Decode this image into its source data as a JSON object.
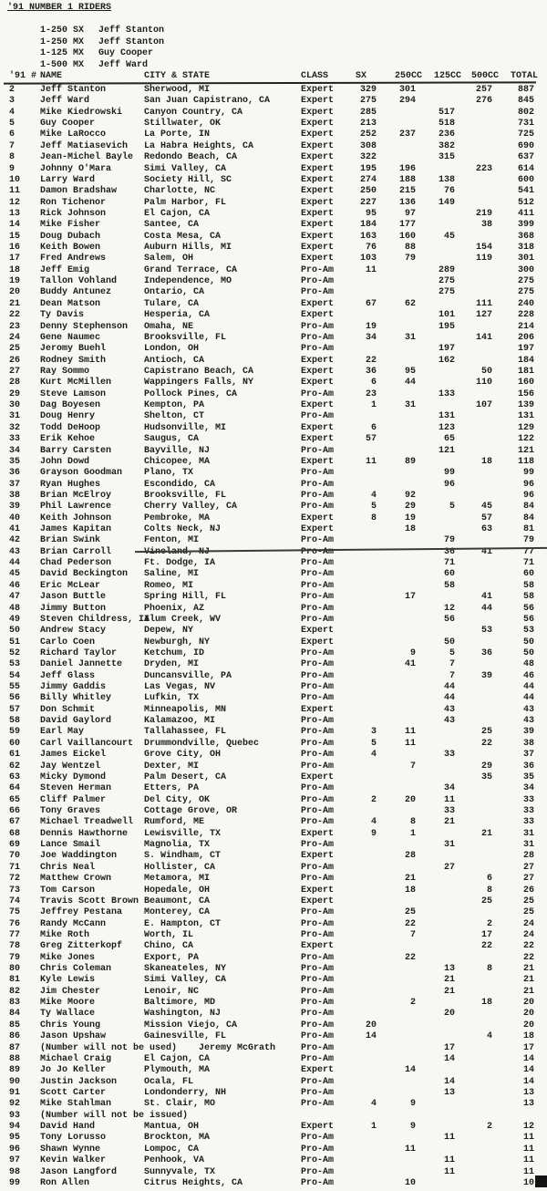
{
  "header": {
    "title": "'91 NUMBER 1 RIDERS",
    "champions": [
      {
        "class": "1-250 SX",
        "rider": "Jeff Stanton"
      },
      {
        "class": "1-250 MX",
        "rider": "Jeff Stanton"
      },
      {
        "class": "1-125 MX",
        "rider": "Guy Cooper"
      },
      {
        "class": "1-500 MX",
        "rider": "Jeff Ward"
      }
    ]
  },
  "table": {
    "columns": [
      {
        "key": "num",
        "label": "'91 #"
      },
      {
        "key": "name",
        "label": "NAME"
      },
      {
        "key": "city",
        "label": "CITY & STATE"
      },
      {
        "key": "class",
        "label": "CLASS"
      },
      {
        "key": "sx",
        "label": "SX"
      },
      {
        "key": "cc250",
        "label": "250CC"
      },
      {
        "key": "cc125",
        "label": "125CC"
      },
      {
        "key": "cc500",
        "label": "500CC"
      },
      {
        "key": "total",
        "label": "TOTAL"
      }
    ],
    "divider_after_number": "42",
    "rows": [
      [
        "2",
        "Jeff Stanton",
        "Sherwood, MI",
        "Expert",
        "329",
        "301",
        "",
        "257",
        "887"
      ],
      [
        "3",
        "Jeff Ward",
        "San Juan Capistrano, CA",
        "Expert",
        "275",
        "294",
        "",
        "276",
        "845"
      ],
      [
        "4",
        "Mike Kiedrowski",
        "Canyon Country, CA",
        "Expert",
        "285",
        "",
        "517",
        "",
        "802"
      ],
      [
        "5",
        "Guy Cooper",
        "Stillwater, OK",
        "Expert",
        "213",
        "",
        "518",
        "",
        "731"
      ],
      [
        "6",
        "Mike LaRocco",
        "La Porte, IN",
        "Expert",
        "252",
        "237",
        "236",
        "",
        "725"
      ],
      [
        "7",
        "Jeff Matiasevich",
        "La Habra Heights, CA",
        "Expert",
        "308",
        "",
        "382",
        "",
        "690"
      ],
      [
        "8",
        "Jean-Michel Bayle",
        "Redondo Beach, CA",
        "Expert",
        "322",
        "",
        "315",
        "",
        "637"
      ],
      [
        "9",
        "Johnny O'Mara",
        "Simi Valley, CA",
        "Expert",
        "195",
        "196",
        "",
        "223",
        "614"
      ],
      [
        "10",
        "Larry Ward",
        "Society Hill, SC",
        "Expert",
        "274",
        "188",
        "138",
        "",
        "600"
      ],
      [
        "11",
        "Damon Bradshaw",
        "Charlotte, NC",
        "Expert",
        "250",
        "215",
        "76",
        "",
        "541"
      ],
      [
        "12",
        "Ron Tichenor",
        "Palm Harbor, FL",
        "Expert",
        "227",
        "136",
        "149",
        "",
        "512"
      ],
      [
        "13",
        "Rick Johnson",
        "El Cajon, CA",
        "Expert",
        "95",
        "97",
        "",
        "219",
        "411"
      ],
      [
        "14",
        "Mike Fisher",
        "Santee, CA",
        "Expert",
        "184",
        "177",
        "",
        "38",
        "399"
      ],
      [
        "15",
        "Doug Dubach",
        "Costa Mesa, CA",
        "Expert",
        "163",
        "160",
        "45",
        "",
        "368"
      ],
      [
        "16",
        "Keith Bowen",
        "Auburn Hills, MI",
        "Expert",
        "76",
        "88",
        "",
        "154",
        "318"
      ],
      [
        "17",
        "Fred Andrews",
        "Salem, OH",
        "Expert",
        "103",
        "79",
        "",
        "119",
        "301"
      ],
      [
        "18",
        "Jeff Emig",
        "Grand Terrace, CA",
        "Pro-Am",
        "11",
        "",
        "289",
        "",
        "300"
      ],
      [
        "19",
        "Tallon Vohland",
        "Independence, MO",
        "Pro-Am",
        "",
        "",
        "275",
        "",
        "275"
      ],
      [
        "20",
        "Buddy Antunez",
        "Ontario, CA",
        "Pro-Am",
        "",
        "",
        "275",
        "",
        "275"
      ],
      [
        "21",
        "Dean Matson",
        "Tulare, CA",
        "Expert",
        "67",
        "62",
        "",
        "111",
        "240"
      ],
      [
        "22",
        "Ty Davis",
        "Hesperia, CA",
        "Expert",
        "",
        "",
        "101",
        "127",
        "228"
      ],
      [
        "23",
        "Denny Stephenson",
        "Omaha, NE",
        "Pro-Am",
        "19",
        "",
        "195",
        "",
        "214"
      ],
      [
        "24",
        "Gene Naumec",
        "Brooksville, FL",
        "Pro-Am",
        "34",
        "31",
        "",
        "141",
        "206"
      ],
      [
        "25",
        "Jeromy Buehl",
        "London, OH",
        "Pro-Am",
        "",
        "",
        "197",
        "",
        "197"
      ],
      [
        "26",
        "Rodney Smith",
        "Antioch, CA",
        "Expert",
        "22",
        "",
        "162",
        "",
        "184"
      ],
      [
        "27",
        "Ray Sommo",
        "Capistrano Beach, CA",
        "Expert",
        "36",
        "95",
        "",
        "50",
        "181"
      ],
      [
        "28",
        "Kurt McMillen",
        "Wappingers Falls, NY",
        "Expert",
        "6",
        "44",
        "",
        "110",
        "160"
      ],
      [
        "29",
        "Steve Lamson",
        "Pollock Pines, CA",
        "Pro-Am",
        "23",
        "",
        "133",
        "",
        "156"
      ],
      [
        "30",
        "Dag Boyesen",
        "Kempton, PA",
        "Expert",
        "1",
        "31",
        "",
        "107",
        "139"
      ],
      [
        "31",
        "Doug Henry",
        "Shelton, CT",
        "Pro-Am",
        "",
        "",
        "131",
        "",
        "131"
      ],
      [
        "32",
        "Todd DeHoop",
        "Hudsonville, MI",
        "Expert",
        "6",
        "",
        "123",
        "",
        "129"
      ],
      [
        "33",
        "Erik Kehoe",
        "Saugus, CA",
        "Expert",
        "57",
        "",
        "65",
        "",
        "122"
      ],
      [
        "34",
        "Barry Carsten",
        "Bayville, NJ",
        "Pro-Am",
        "",
        "",
        "121",
        "",
        "121"
      ],
      [
        "35",
        "John Dowd",
        "Chicopee, MA",
        "Expert",
        "11",
        "89",
        "",
        "18",
        "118"
      ],
      [
        "36",
        "Grayson Goodman",
        "Plano, TX",
        "Pro-Am",
        "",
        "",
        "99",
        "",
        "99"
      ],
      [
        "37",
        "Ryan Hughes",
        "Escondido, CA",
        "Pro-Am",
        "",
        "",
        "96",
        "",
        "96"
      ],
      [
        "38",
        "Brian McElroy",
        "Brooksville, FL",
        "Pro-Am",
        "4",
        "92",
        "",
        "",
        "96"
      ],
      [
        "39",
        "Phil Lawrence",
        "Cherry Valley, CA",
        "Pro-Am",
        "5",
        "29",
        "5",
        "45",
        "84"
      ],
      [
        "40",
        "Keith Johnson",
        "Pembroke, MA",
        "Expert",
        "8",
        "19",
        "",
        "57",
        "84"
      ],
      [
        "41",
        "James Kapitan",
        "Colts Neck, NJ",
        "Expert",
        "",
        "18",
        "",
        "63",
        "81"
      ],
      [
        "42",
        "Brian Swink",
        "Fenton, MI",
        "Pro-Am",
        "",
        "",
        "79",
        "",
        "79"
      ],
      [
        "43",
        "Brian Carroll",
        "Vineland, NJ",
        "Pro-Am",
        "",
        "",
        "36",
        "41",
        "77"
      ],
      [
        "44",
        "Chad Pederson",
        "Ft. Dodge, IA",
        "Pro-Am",
        "",
        "",
        "71",
        "",
        "71"
      ],
      [
        "45",
        "David Beckington",
        "Saline, MI",
        "Pro-Am",
        "",
        "",
        "60",
        "",
        "60"
      ],
      [
        "46",
        "Eric McLear",
        "Romeo, MI",
        "Pro-Am",
        "",
        "",
        "58",
        "",
        "58"
      ],
      [
        "47",
        "Jason Buttle",
        "Spring Hill, FL",
        "Pro-Am",
        "",
        "17",
        "",
        "41",
        "58"
      ],
      [
        "48",
        "Jimmy Button",
        "Phoenix, AZ",
        "Pro-Am",
        "",
        "",
        "12",
        "44",
        "56"
      ],
      [
        "49",
        "Steven Childress, II",
        "Alum Creek, WV",
        "Pro-Am",
        "",
        "",
        "56",
        "",
        "56"
      ],
      [
        "50",
        "Andrew Stacy",
        "Depew, NY",
        "Expert",
        "",
        "",
        "",
        "53",
        "53"
      ],
      [
        "51",
        "Carlo Coen",
        "Newburgh, NY",
        "Expert",
        "",
        "",
        "50",
        "",
        "50"
      ],
      [
        "52",
        "Richard Taylor",
        "Ketchum, ID",
        "Pro-Am",
        "",
        "9",
        "5",
        "36",
        "50"
      ],
      [
        "53",
        "Daniel Jannette",
        "Dryden, MI",
        "Pro-Am",
        "",
        "41",
        "7",
        "",
        "48"
      ],
      [
        "54",
        "Jeff Glass",
        "Duncansville, PA",
        "Pro-Am",
        "",
        "",
        "7",
        "39",
        "46"
      ],
      [
        "55",
        "Jimmy Gaddis",
        "Las Vegas, NV",
        "Pro-Am",
        "",
        "",
        "44",
        "",
        "44"
      ],
      [
        "56",
        "Billy Whitley",
        "Lufkin, TX",
        "Pro-Am",
        "",
        "",
        "44",
        "",
        "44"
      ],
      [
        "57",
        "Don Schmit",
        "Minneapolis, MN",
        "Expert",
        "",
        "",
        "43",
        "",
        "43"
      ],
      [
        "58",
        "David Gaylord",
        "Kalamazoo, MI",
        "Pro-Am",
        "",
        "",
        "43",
        "",
        "43"
      ],
      [
        "59",
        "Earl May",
        "Tallahassee, FL",
        "Pro-Am",
        "3",
        "11",
        "",
        "25",
        "39"
      ],
      [
        "60",
        "Carl Vaillancourt",
        "Drummondville, Quebec",
        "Pro-Am",
        "5",
        "11",
        "",
        "22",
        "38"
      ],
      [
        "61",
        "James Eickel",
        "Grove City, OH",
        "Pro-Am",
        "4",
        "",
        "33",
        "",
        "37"
      ],
      [
        "62",
        "Jay Wentzel",
        "Dexter, MI",
        "Pro-Am",
        "",
        "7",
        "",
        "29",
        "36"
      ],
      [
        "63",
        "Micky Dymond",
        "Palm Desert, CA",
        "Expert",
        "",
        "",
        "",
        "35",
        "35"
      ],
      [
        "64",
        "Steven Herman",
        "Etters, PA",
        "Pro-Am",
        "",
        "",
        "34",
        "",
        "34"
      ],
      [
        "65",
        "Cliff Palmer",
        "Del City, OK",
        "Pro-Am",
        "2",
        "20",
        "11",
        "",
        "33"
      ],
      [
        "66",
        "Tony Graves",
        "Cottage Grove, OR",
        "Pro-Am",
        "",
        "",
        "33",
        "",
        "33"
      ],
      [
        "67",
        "Michael Treadwell",
        "Rumford, ME",
        "Pro-Am",
        "4",
        "8",
        "21",
        "",
        "33"
      ],
      [
        "68",
        "Dennis Hawthorne",
        "Lewisville, TX",
        "Expert",
        "9",
        "1",
        "",
        "21",
        "31"
      ],
      [
        "69",
        "Lance Smail",
        "Magnolia, TX",
        "Pro-Am",
        "",
        "",
        "31",
        "",
        "31"
      ],
      [
        "70",
        "Joe Waddington",
        "S. Windham, CT",
        "Expert",
        "",
        "28",
        "",
        "",
        "28"
      ],
      [
        "71",
        "Chris Neal",
        "Hollister, CA",
        "Pro-Am",
        "",
        "",
        "27",
        "",
        "27"
      ],
      [
        "72",
        "Matthew Crown",
        "Metamora, MI",
        "Pro-Am",
        "",
        "21",
        "",
        "6",
        "27"
      ],
      [
        "73",
        "Tom Carson",
        "Hopedale, OH",
        "Expert",
        "",
        "18",
        "",
        "8",
        "26"
      ],
      [
        "74",
        "Travis Scott Brown",
        "Beaumont, CA",
        "Expert",
        "",
        "",
        "",
        "25",
        "25"
      ],
      [
        "75",
        "Jeffrey Pestana",
        "Monterey, CA",
        "Pro-Am",
        "",
        "25",
        "",
        "",
        "25"
      ],
      [
        "76",
        "Randy McCann",
        "E. Hampton, CT",
        "Pro-Am",
        "",
        "22",
        "",
        "2",
        "24"
      ],
      [
        "77",
        "Mike Roth",
        "Worth, IL",
        "Pro-Am",
        "",
        "7",
        "",
        "17",
        "24"
      ],
      [
        "78",
        "Greg Zitterkopf",
        "Chino, CA",
        "Expert",
        "",
        "",
        "",
        "22",
        "22"
      ],
      [
        "79",
        "Mike Jones",
        "Export, PA",
        "Pro-Am",
        "",
        "22",
        "",
        "",
        "22"
      ],
      [
        "80",
        "Chris Coleman",
        "Skaneateles, NY",
        "Pro-Am",
        "",
        "",
        "13",
        "8",
        "21"
      ],
      [
        "81",
        "Kyle Lewis",
        "Simi Valley, CA",
        "Pro-Am",
        "",
        "",
        "21",
        "",
        "21"
      ],
      [
        "82",
        "Jim Chester",
        "Lenoir, NC",
        "Pro-Am",
        "",
        "",
        "21",
        "",
        "21"
      ],
      [
        "83",
        "Mike Moore",
        "Baltimore, MD",
        "Pro-Am",
        "",
        "2",
        "",
        "18",
        "20"
      ],
      [
        "84",
        "Ty Wallace",
        "Washington, NJ",
        "Pro-Am",
        "",
        "",
        "20",
        "",
        "20"
      ],
      [
        "85",
        "Chris Young",
        "Mission Viejo, CA",
        "Pro-Am",
        "20",
        "",
        "",
        "",
        "20"
      ],
      [
        "86",
        "Jason Upshaw",
        "Gainesville, FL",
        "Pro-Am",
        "14",
        "",
        "",
        "4",
        "18"
      ],
      [
        "87",
        "(Number will not be used)    Jeremy McGrath",
        "",
        "Pro-Am",
        "",
        "",
        "17",
        "",
        "17"
      ],
      [
        "88",
        "Michael Craig",
        "El Cajon, CA",
        "Pro-Am",
        "",
        "",
        "14",
        "",
        "14"
      ],
      [
        "89",
        "Jo Jo Keller",
        "Plymouth, MA",
        "Expert",
        "",
        "14",
        "",
        "",
        "14"
      ],
      [
        "90",
        "Justin Jackson",
        "Ocala, FL",
        "Pro-Am",
        "",
        "",
        "14",
        "",
        "14"
      ],
      [
        "91",
        "Scott Carter",
        "Londonderry, NH",
        "Pro-Am",
        "",
        "",
        "13",
        "",
        "13"
      ],
      [
        "92",
        "Mike Stahlman",
        "St. Clair, MO",
        "Pro-Am",
        "4",
        "9",
        "",
        "",
        "13"
      ],
      [
        "93",
        "(Number will not be issued)",
        "",
        "",
        "",
        "",
        "",
        "",
        ""
      ],
      [
        "94",
        "David Hand",
        "Mantua, OH",
        "Expert",
        "1",
        "9",
        "",
        "2",
        "12"
      ],
      [
        "95",
        "Tony Lorusso",
        "Brockton, MA",
        "Pro-Am",
        "",
        "",
        "11",
        "",
        "11"
      ],
      [
        "96",
        "Shawn Wynne",
        "Lompoc, CA",
        "Pro-Am",
        "",
        "11",
        "",
        "",
        "11"
      ],
      [
        "97",
        "Kevin Walker",
        "Penhook, VA",
        "Pro-Am",
        "",
        "",
        "11",
        "",
        "11"
      ],
      [
        "98",
        "Jason Langford",
        "Sunnyvale, TX",
        "Pro-Am",
        "",
        "",
        "11",
        "",
        "11"
      ],
      [
        "99",
        "Ron Allen",
        "Citrus Heights, CA",
        "Pro-Am",
        "",
        "10",
        "",
        "",
        "10"
      ]
    ]
  }
}
